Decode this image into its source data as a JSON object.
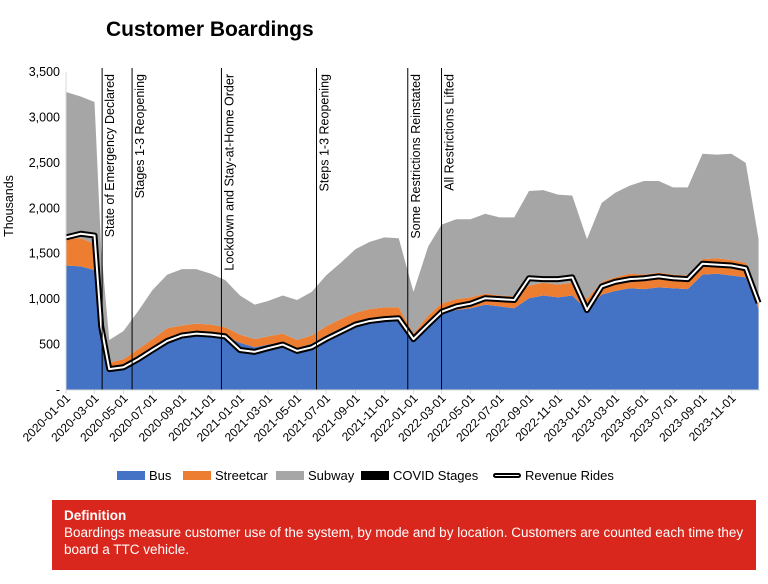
{
  "chart_data": {
    "type": "area",
    "title": "Customer Boardings",
    "ylabel": "Thousands",
    "xlabel": "",
    "ylim": [
      0,
      3500
    ],
    "yticks": [
      0,
      500,
      1000,
      1500,
      2000,
      2500,
      3000,
      3500
    ],
    "ytick_labels": [
      "-",
      "500",
      "1,000",
      "1,500",
      "2,000",
      "2,500",
      "3,000",
      "3,500"
    ],
    "xticks": [
      "2020-01-01",
      "2020-03-01",
      "2020-05-01",
      "2020-07-01",
      "2020-09-01",
      "2020-11-01",
      "2021-01-01",
      "2021-03-01",
      "2021-05-01",
      "2021-07-01",
      "2021-09-01",
      "2021-11-01",
      "2022-01-01",
      "2022-03-01",
      "2022-05-01",
      "2022-07-01",
      "2022-09-01",
      "2022-11-01",
      "2023-01-01",
      "2023-03-01",
      "2023-05-01",
      "2023-07-01",
      "2023-09-01",
      "2023-11-01"
    ],
    "grid": false,
    "legend_position": "bottom",
    "x": [
      "2020-01-01",
      "2020-02-01",
      "2020-03-01",
      "2020-03-15",
      "2020-04-01",
      "2020-05-01",
      "2020-06-01",
      "2020-07-01",
      "2020-08-01",
      "2020-09-01",
      "2020-10-01",
      "2020-11-01",
      "2020-12-01",
      "2021-01-01",
      "2021-02-01",
      "2021-03-01",
      "2021-04-01",
      "2021-05-01",
      "2021-06-01",
      "2021-07-01",
      "2021-08-01",
      "2021-09-01",
      "2021-10-01",
      "2021-11-01",
      "2021-12-01",
      "2022-01-01",
      "2022-02-01",
      "2022-03-01",
      "2022-04-01",
      "2022-05-01",
      "2022-06-01",
      "2022-07-01",
      "2022-08-01",
      "2022-09-01",
      "2022-10-01",
      "2022-11-01",
      "2022-12-01",
      "2023-01-01",
      "2023-02-01",
      "2023-03-01",
      "2023-04-01",
      "2023-05-01",
      "2023-06-01",
      "2023-07-01",
      "2023-08-01",
      "2023-09-01",
      "2023-10-01",
      "2023-11-01",
      "2023-12-01",
      "2023-12-28"
    ],
    "series": [
      {
        "name": "Bus",
        "color": "#4472c4",
        "values": [
          1370,
          1360,
          1320,
          600,
          250,
          280,
          380,
          470,
          570,
          600,
          620,
          610,
          590,
          520,
          470,
          500,
          530,
          460,
          510,
          600,
          680,
          750,
          780,
          800,
          800,
          530,
          720,
          840,
          880,
          900,
          940,
          920,
          900,
          1010,
          1040,
          1020,
          1040,
          880,
          1050,
          1090,
          1120,
          1110,
          1130,
          1120,
          1110,
          1270,
          1280,
          1260,
          1240,
          900
        ]
      },
      {
        "name": "Streetcar",
        "color": "#ed7d31",
        "values": [
          300,
          310,
          290,
          110,
          50,
          60,
          70,
          90,
          110,
          110,
          110,
          110,
          100,
          90,
          90,
          90,
          90,
          90,
          90,
          100,
          100,
          100,
          110,
          110,
          110,
          90,
          100,
          110,
          120,
          120,
          120,
          120,
          130,
          140,
          140,
          140,
          140,
          120,
          140,
          150,
          160,
          160,
          160,
          150,
          150,
          170,
          170,
          170,
          160,
          120
        ]
      },
      {
        "name": "Subway",
        "color": "#a6a6a6",
        "values": [
          1610,
          1560,
          1560,
          840,
          250,
          310,
          420,
          540,
          590,
          620,
          600,
          560,
          520,
          430,
          380,
          390,
          420,
          440,
          480,
          560,
          620,
          700,
          740,
          770,
          760,
          460,
          760,
          870,
          880,
          860,
          880,
          860,
          870,
          1040,
          1020,
          990,
          960,
          660,
          870,
          930,
          970,
          1030,
          1010,
          960,
          970,
          1160,
          1140,
          1170,
          1100,
          640
        ]
      }
    ],
    "covid_stages": {
      "name": "COVID Stages",
      "color": "#000000"
    },
    "revenue_rides": {
      "name": "Revenue Rides",
      "color": "#000000",
      "values": [
        1680,
        1720,
        1700,
        700,
        230,
        250,
        340,
        440,
        540,
        600,
        620,
        610,
        590,
        440,
        420,
        460,
        500,
        430,
        470,
        560,
        640,
        720,
        760,
        780,
        790,
        560,
        720,
        860,
        920,
        950,
        1010,
        1000,
        990,
        1230,
        1220,
        1220,
        1240,
        880,
        1140,
        1190,
        1220,
        1230,
        1250,
        1230,
        1220,
        1390,
        1380,
        1370,
        1340,
        960
      ]
    },
    "annotations": [
      {
        "label": "State of Emergency Declared",
        "date": "2020-03-17"
      },
      {
        "label": "Stages 1-3 Reopening",
        "date": "2020-05-19"
      },
      {
        "label": "Lockdown and Stay-at-Home Order",
        "date": "2020-11-23"
      },
      {
        "label": "Steps 1-3 Reopening",
        "date": "2021-06-11"
      },
      {
        "label": "Some Restrictions Reinstated",
        "date": "2021-12-20"
      },
      {
        "label": "All Restrictions Lifted",
        "date": "2022-03-01"
      }
    ]
  },
  "definition": {
    "title": "Definition",
    "text": "Boardings measure customer use of the system, by mode and by location. Customers are counted each time they board a TTC vehicle."
  }
}
